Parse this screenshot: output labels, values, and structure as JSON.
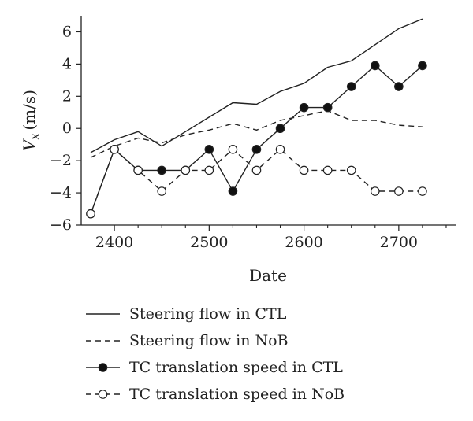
{
  "chart_data": {
    "type": "line",
    "xlabel": "Date",
    "ylabel_main": "V",
    "ylabel_sub": "x",
    "ylabel_unit": "(m/s)",
    "xlim": [
      2365,
      2760
    ],
    "ylim": [
      -6,
      7
    ],
    "x_ticks": [
      2400,
      2500,
      2600,
      2700
    ],
    "x_minor_ticks": [
      2425,
      2450,
      2475,
      2525,
      2550,
      2575,
      2625,
      2650,
      2675,
      2725,
      2750
    ],
    "y_ticks": [
      -6,
      -4,
      -2,
      0,
      2,
      4,
      6
    ],
    "y_tick_labels": [
      "−6",
      "−4",
      "−2",
      "0",
      "2",
      "4",
      "6"
    ],
    "grid": false,
    "legend_position": "bottom",
    "series": [
      {
        "name": "Steering flow in CTL",
        "style": "solid",
        "marker": "none",
        "x": [
          2375,
          2400,
          2425,
          2450,
          2475,
          2500,
          2525,
          2550,
          2575,
          2600,
          2625,
          2650,
          2675,
          2700,
          2725
        ],
        "y": [
          -1.5,
          -0.7,
          -0.2,
          -1.1,
          -0.2,
          0.7,
          1.6,
          1.5,
          2.3,
          2.8,
          3.8,
          4.2,
          5.2,
          6.2,
          6.8
        ]
      },
      {
        "name": "Steering flow in NoB",
        "style": "dashed",
        "marker": "none",
        "x": [
          2375,
          2400,
          2425,
          2450,
          2475,
          2500,
          2525,
          2550,
          2575,
          2600,
          2625,
          2650,
          2675,
          2700,
          2725
        ],
        "y": [
          -1.8,
          -1.1,
          -0.6,
          -0.9,
          -0.4,
          -0.1,
          0.3,
          -0.1,
          0.5,
          0.8,
          1.1,
          0.5,
          0.5,
          0.2,
          0.1
        ]
      },
      {
        "name": "TC translation speed in CTL",
        "style": "solid",
        "marker": "filled-circle",
        "x": [
          2375,
          2400,
          2425,
          2450,
          2475,
          2500,
          2525,
          2550,
          2575,
          2600,
          2625,
          2650,
          2675,
          2700,
          2725
        ],
        "y": [
          -5.3,
          -1.3,
          -2.6,
          -2.6,
          -2.6,
          -1.3,
          -3.9,
          -1.3,
          0.0,
          1.3,
          1.3,
          2.6,
          3.9,
          2.6,
          3.9
        ]
      },
      {
        "name": "TC translation speed in NoB",
        "style": "dashed",
        "marker": "open-circle",
        "x": [
          2375,
          2400,
          2425,
          2450,
          2475,
          2500,
          2525,
          2550,
          2575,
          2600,
          2625,
          2650,
          2675,
          2700,
          2725
        ],
        "y": [
          -5.3,
          -1.3,
          -2.6,
          -3.9,
          -2.6,
          -2.6,
          -1.3,
          -2.6,
          -1.3,
          -2.6,
          -2.6,
          -2.6,
          -3.9,
          -3.9,
          -3.9
        ]
      }
    ],
    "colors": {
      "line": "#222222",
      "marker_fill_filled": "#111111",
      "marker_fill_open": "#ffffff"
    }
  }
}
